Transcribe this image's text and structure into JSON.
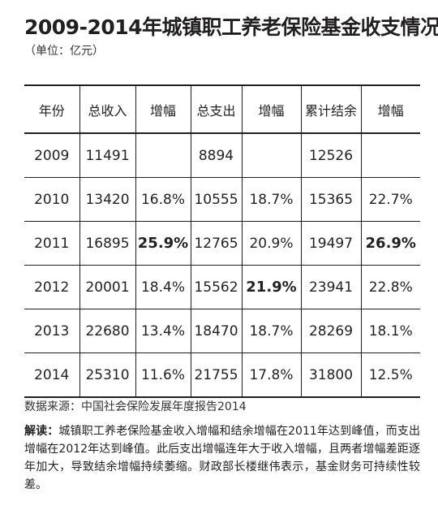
{
  "title": "2009-2014年城镇职工养老保险基金收支情况",
  "unit": "（单位：亿元）",
  "table": {
    "headers": [
      "年份",
      "总收入",
      "增幅",
      "总支出",
      "增幅",
      "累计结余",
      "增幅"
    ],
    "rows": [
      [
        "2009",
        "11491",
        "",
        "8894",
        "",
        "12526",
        ""
      ],
      [
        "2010",
        "13420",
        "16.8%",
        "10555",
        "18.7%",
        "15365",
        "22.7%"
      ],
      [
        "2011",
        "16895",
        "25.9%",
        "12765",
        "20.9%",
        "19497",
        "26.9%"
      ],
      [
        "2012",
        "20001",
        "18.4%",
        "15562",
        "21.9%",
        "23941",
        "22.8%"
      ],
      [
        "2013",
        "22680",
        "13.4%",
        "18470",
        "18.7%",
        "28269",
        "18.1%"
      ],
      [
        "2014",
        "25310",
        "11.6%",
        "21755",
        "17.8%",
        "31800",
        "12.5%"
      ]
    ]
  },
  "source": "数据来源：中国社会保险发展年度报告2014",
  "note": {
    "lead": "解读：",
    "text": "城镇职工养老保险基金收入增幅和结余增幅在2011年达到峰值，而支出增幅在2012年达到峰值。此后支出增幅连年大于收入增幅，且两者增幅差距逐年加大，导致结余增幅持续萎缩。财政部长楼继伟表示，基金财务可持续性较差。"
  }
}
